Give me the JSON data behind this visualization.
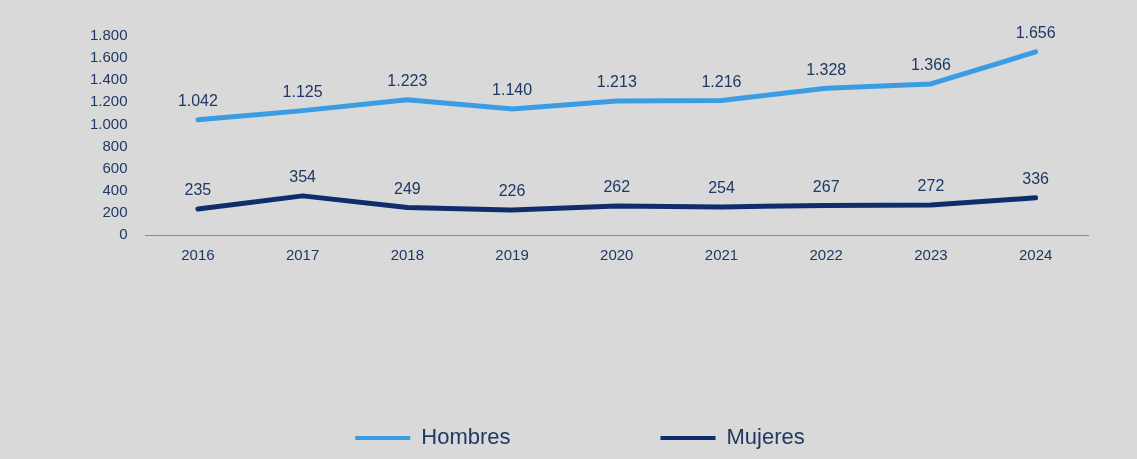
{
  "chart_data": {
    "type": "line",
    "categories": [
      "2016",
      "2017",
      "2018",
      "2019",
      "2020",
      "2021",
      "2022",
      "2023",
      "2024"
    ],
    "series": [
      {
        "name": "Hombres",
        "color": "#3a9de3",
        "values": [
          1042,
          1125,
          1223,
          1140,
          1213,
          1216,
          1328,
          1366,
          1656
        ],
        "value_labels": [
          "1.042",
          "1.125",
          "1.223",
          "1.140",
          "1.213",
          "1.216",
          "1.328",
          "1.366",
          "1.656"
        ]
      },
      {
        "name": "Mujeres",
        "color": "#102d6b",
        "values": [
          235,
          354,
          249,
          226,
          262,
          254,
          267,
          272,
          336
        ],
        "value_labels": [
          "235",
          "354",
          "249",
          "226",
          "262",
          "254",
          "267",
          "272",
          "336"
        ]
      }
    ],
    "ylim": [
      0,
      1800
    ],
    "yticks": [
      {
        "value": 0,
        "label": "0"
      },
      {
        "value": 200,
        "label": "200"
      },
      {
        "value": 400,
        "label": "400"
      },
      {
        "value": 600,
        "label": "600"
      },
      {
        "value": 800,
        "label": "800"
      },
      {
        "value": 1000,
        "label": "1.000"
      },
      {
        "value": 1200,
        "label": "1.200"
      },
      {
        "value": 1400,
        "label": "1.400"
      },
      {
        "value": 1600,
        "label": "1.600"
      },
      {
        "value": 1800,
        "label": "1.800"
      }
    ],
    "grid": false,
    "legend": "bottom",
    "marker": "none",
    "line_style": "solid"
  }
}
